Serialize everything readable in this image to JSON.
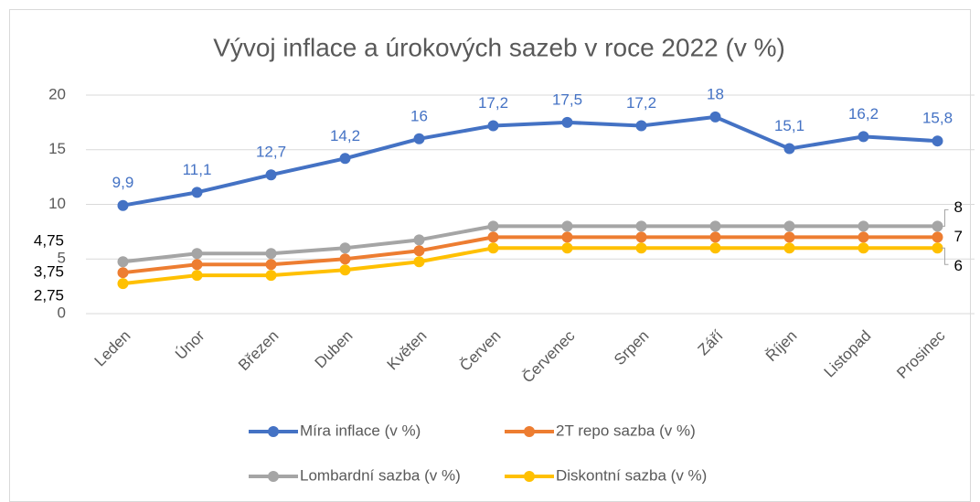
{
  "chart_data": {
    "type": "line",
    "title": "Vývoj inflace a úrokových sazeb v roce 2022 (v %)",
    "categories": [
      "Leden",
      "Únor",
      "Březen",
      "Duben",
      "Květen",
      "Červen",
      "Červenec",
      "Srpen",
      "Září",
      "Říjen",
      "Listopad",
      "Prosinec"
    ],
    "series": [
      {
        "name": "Míra inflace (v %)",
        "color": "#4472c4",
        "values": [
          9.9,
          11.1,
          12.7,
          14.2,
          16,
          17.2,
          17.5,
          17.2,
          18,
          15.1,
          16.2,
          15.8
        ],
        "value_labels": [
          "9,9",
          "11,1",
          "12,7",
          "14,2",
          "16",
          "17,2",
          "17,5",
          "17,2",
          "18",
          "15,1",
          "16,2",
          "15,8"
        ]
      },
      {
        "name": "2T repo sazba (v %)",
        "color": "#ed7d31",
        "values": [
          3.75,
          4.5,
          4.5,
          5,
          5.75,
          7,
          7,
          7,
          7,
          7,
          7,
          7
        ],
        "value_labels": [
          "3,75",
          null,
          null,
          null,
          null,
          null,
          null,
          null,
          null,
          null,
          null,
          "7"
        ]
      },
      {
        "name": "Lombardní sazba (v %)",
        "color": "#a5a5a5",
        "values": [
          4.75,
          5.5,
          5.5,
          6,
          6.75,
          8,
          8,
          8,
          8,
          8,
          8,
          8
        ],
        "value_labels": [
          "4,75",
          null,
          null,
          null,
          null,
          null,
          null,
          null,
          null,
          null,
          null,
          "8"
        ]
      },
      {
        "name": "Diskontní sazba (v %)",
        "color": "#ffc000",
        "values": [
          2.75,
          3.5,
          3.5,
          4,
          4.75,
          6,
          6,
          6,
          6,
          6,
          6,
          6
        ],
        "value_labels": [
          "2,75",
          null,
          null,
          null,
          null,
          null,
          null,
          null,
          null,
          null,
          null,
          "6"
        ]
      }
    ],
    "ylim": [
      0,
      20
    ],
    "yticks": [
      0,
      5,
      10,
      15,
      20
    ],
    "grid": true,
    "legend": "bottom"
  }
}
